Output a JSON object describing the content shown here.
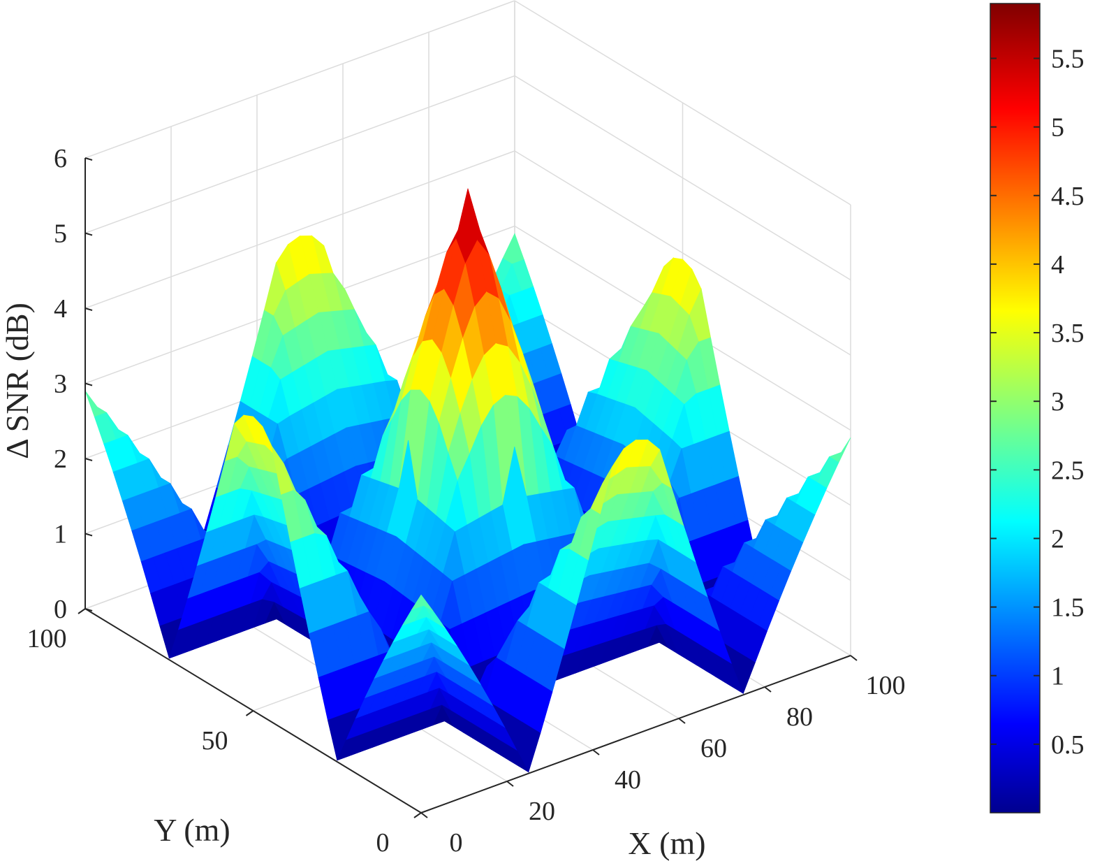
{
  "chart_data": {
    "type": "surface",
    "zlabel": "Δ SNR (dB)",
    "xlabel": "X (m)",
    "ylabel": "Y (m)",
    "xlim": [
      0,
      100
    ],
    "ylim": [
      0,
      100
    ],
    "zlim": [
      0,
      6
    ],
    "x_ticks": [
      "0",
      "20",
      "40",
      "60",
      "80",
      "100"
    ],
    "y_ticks": [
      "0",
      "50",
      "100"
    ],
    "z_ticks": [
      "0",
      "1",
      "2",
      "3",
      "4",
      "5",
      "6"
    ],
    "colorbar": {
      "ticks": [
        "0.5",
        "1",
        "1.5",
        "2",
        "2.5",
        "3",
        "3.5",
        "4",
        "4.5",
        "5",
        "5.5"
      ],
      "range": [
        0,
        5.9
      ],
      "colormap": "jet"
    },
    "surface": {
      "description_points": [
        {
          "x": 50,
          "y": 50,
          "z": 5.9
        },
        {
          "x": 0,
          "y": 0,
          "z": 1.7
        },
        {
          "x": 100,
          "y": 0,
          "z": 2.9
        },
        {
          "x": 0,
          "y": 100,
          "z": 2.9
        },
        {
          "x": 100,
          "y": 100,
          "z": 2.6
        },
        {
          "x": 25,
          "y": 25,
          "z": 0.1
        },
        {
          "x": 75,
          "y": 25,
          "z": 0.1
        },
        {
          "x": 25,
          "y": 75,
          "z": 0.1
        },
        {
          "x": 75,
          "y": 75,
          "z": 0.1
        }
      ]
    }
  }
}
